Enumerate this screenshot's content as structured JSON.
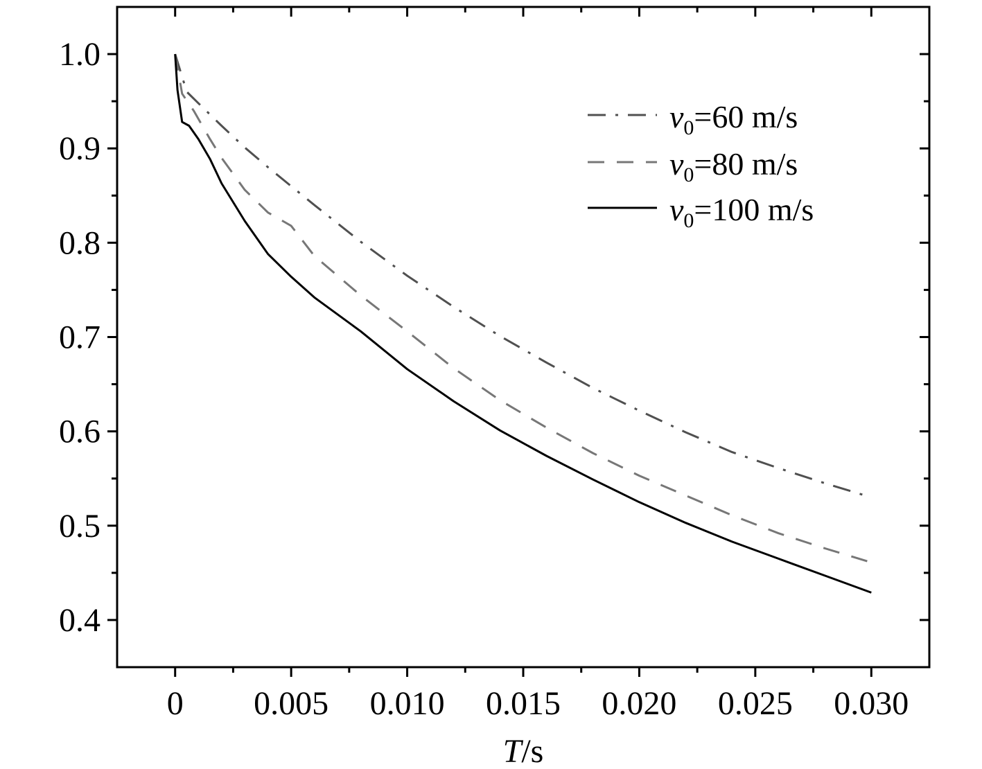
{
  "chart_data": {
    "type": "line",
    "title": "",
    "xlabel": {
      "italic": "T",
      "unit": "/s"
    },
    "ylabel": "",
    "xlim": [
      -0.0025,
      0.0325
    ],
    "ylim": [
      0.35,
      1.05
    ],
    "xticks": [
      {
        "value": 0,
        "label": "0"
      },
      {
        "value": 0.005,
        "label": "0.005"
      },
      {
        "value": 0.01,
        "label": "0.010"
      },
      {
        "value": 0.015,
        "label": "0.015"
      },
      {
        "value": 0.02,
        "label": "0.020"
      },
      {
        "value": 0.025,
        "label": "0.025"
      },
      {
        "value": 0.03,
        "label": "0.030"
      }
    ],
    "yticks": [
      {
        "value": 0.4,
        "label": "0.4"
      },
      {
        "value": 0.5,
        "label": "0.5"
      },
      {
        "value": 0.6,
        "label": "0.6"
      },
      {
        "value": 0.7,
        "label": "0.7"
      },
      {
        "value": 0.8,
        "label": "0.8"
      },
      {
        "value": 0.9,
        "label": "0.9"
      },
      {
        "value": 1.0,
        "label": "1.0"
      }
    ],
    "grid": false,
    "legend_position": "top-right",
    "series": [
      {
        "name": "v0=60 m/s",
        "legend": {
          "symbol": "v",
          "sub": "0",
          "text": "=60 m/s"
        },
        "style": "dash-dot",
        "color": "#505050",
        "x": [
          0,
          0.0005,
          0.001,
          0.002,
          0.003,
          0.004,
          0.005,
          0.006,
          0.008,
          0.01,
          0.012,
          0.014,
          0.016,
          0.018,
          0.02,
          0.022,
          0.024,
          0.026,
          0.028,
          0.03
        ],
        "y": [
          1.0,
          0.96,
          0.948,
          0.924,
          0.901,
          0.88,
          0.86,
          0.84,
          0.801,
          0.765,
          0.732,
          0.701,
          0.673,
          0.646,
          0.622,
          0.599,
          0.578,
          0.561,
          0.545,
          0.53
        ]
      },
      {
        "name": "v0=80 m/s",
        "legend": {
          "symbol": "v",
          "sub": "0",
          "text": "=80 m/s"
        },
        "style": "dashed",
        "color": "#777777",
        "x": [
          0,
          0.0003,
          0.0008,
          0.0015,
          0.002,
          0.003,
          0.004,
          0.005,
          0.006,
          0.008,
          0.01,
          0.012,
          0.014,
          0.016,
          0.018,
          0.02,
          0.022,
          0.024,
          0.026,
          0.028,
          0.03
        ],
        "y": [
          1.0,
          0.958,
          0.94,
          0.91,
          0.89,
          0.856,
          0.832,
          0.818,
          0.786,
          0.744,
          0.706,
          0.667,
          0.633,
          0.604,
          0.577,
          0.553,
          0.532,
          0.511,
          0.492,
          0.476,
          0.461
        ]
      },
      {
        "name": "v0=100 m/s",
        "legend": {
          "symbol": "v",
          "sub": "0",
          "text": "=100 m/s"
        },
        "style": "solid",
        "color": "#000000",
        "x": [
          0,
          0.0001,
          0.0003,
          0.0006,
          0.001,
          0.0015,
          0.002,
          0.003,
          0.004,
          0.005,
          0.006,
          0.008,
          0.01,
          0.012,
          0.014,
          0.016,
          0.018,
          0.02,
          0.022,
          0.024,
          0.026,
          0.028,
          0.03
        ],
        "y": [
          1.0,
          0.962,
          0.928,
          0.924,
          0.91,
          0.889,
          0.863,
          0.823,
          0.788,
          0.764,
          0.742,
          0.706,
          0.666,
          0.632,
          0.601,
          0.574,
          0.549,
          0.525,
          0.503,
          0.483,
          0.465,
          0.447,
          0.429
        ]
      }
    ]
  }
}
